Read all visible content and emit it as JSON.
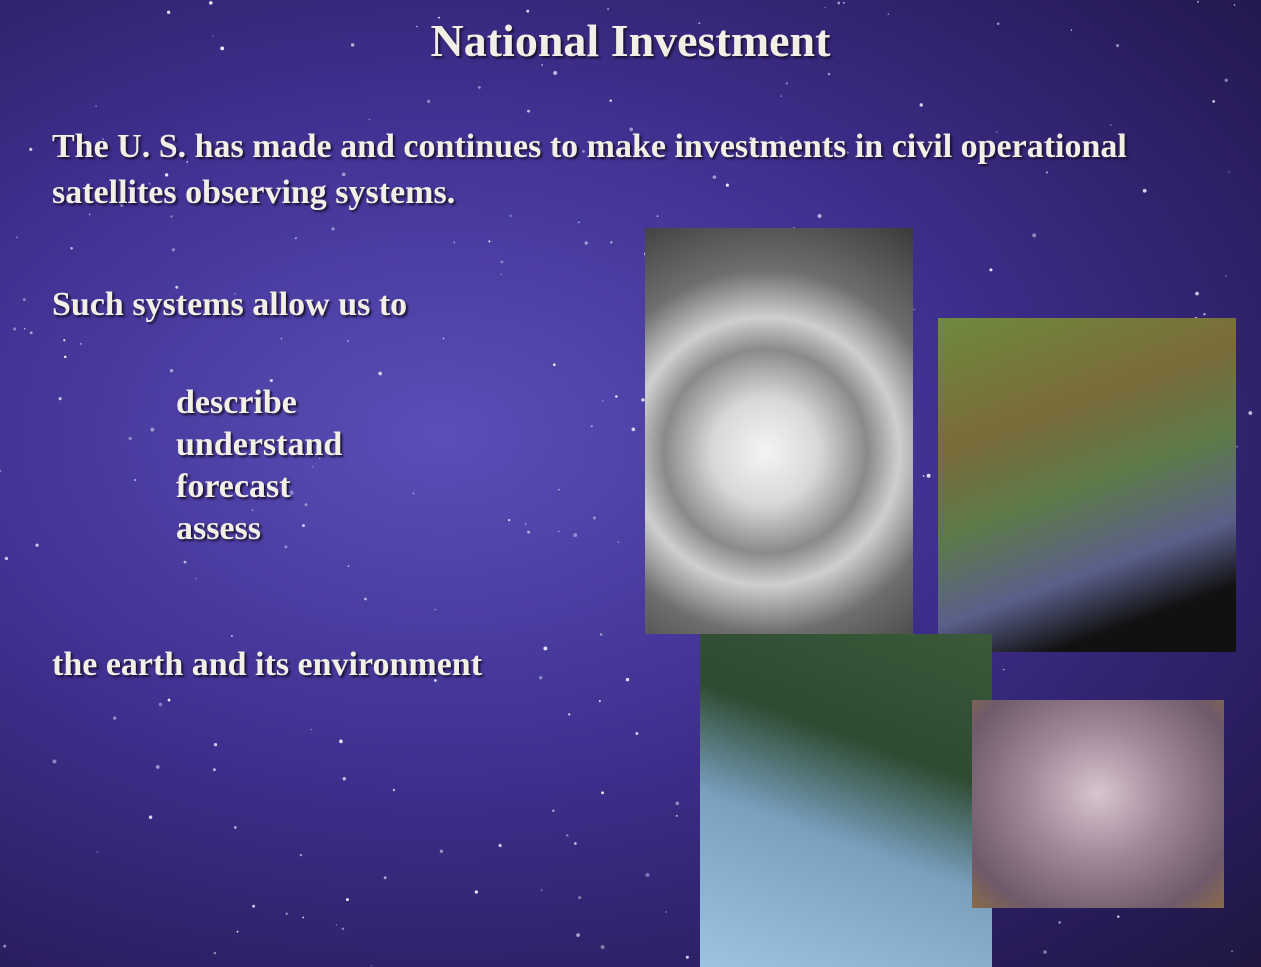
{
  "title": "National Investment",
  "paragraphs": [
    "The U.  S. has made and continues to make investments in civil operational satellites observing systems.",
    "Such systems allow us to",
    "the earth and its environment"
  ],
  "list": [
    "describe",
    "understand",
    "forecast",
    "assess"
  ]
}
